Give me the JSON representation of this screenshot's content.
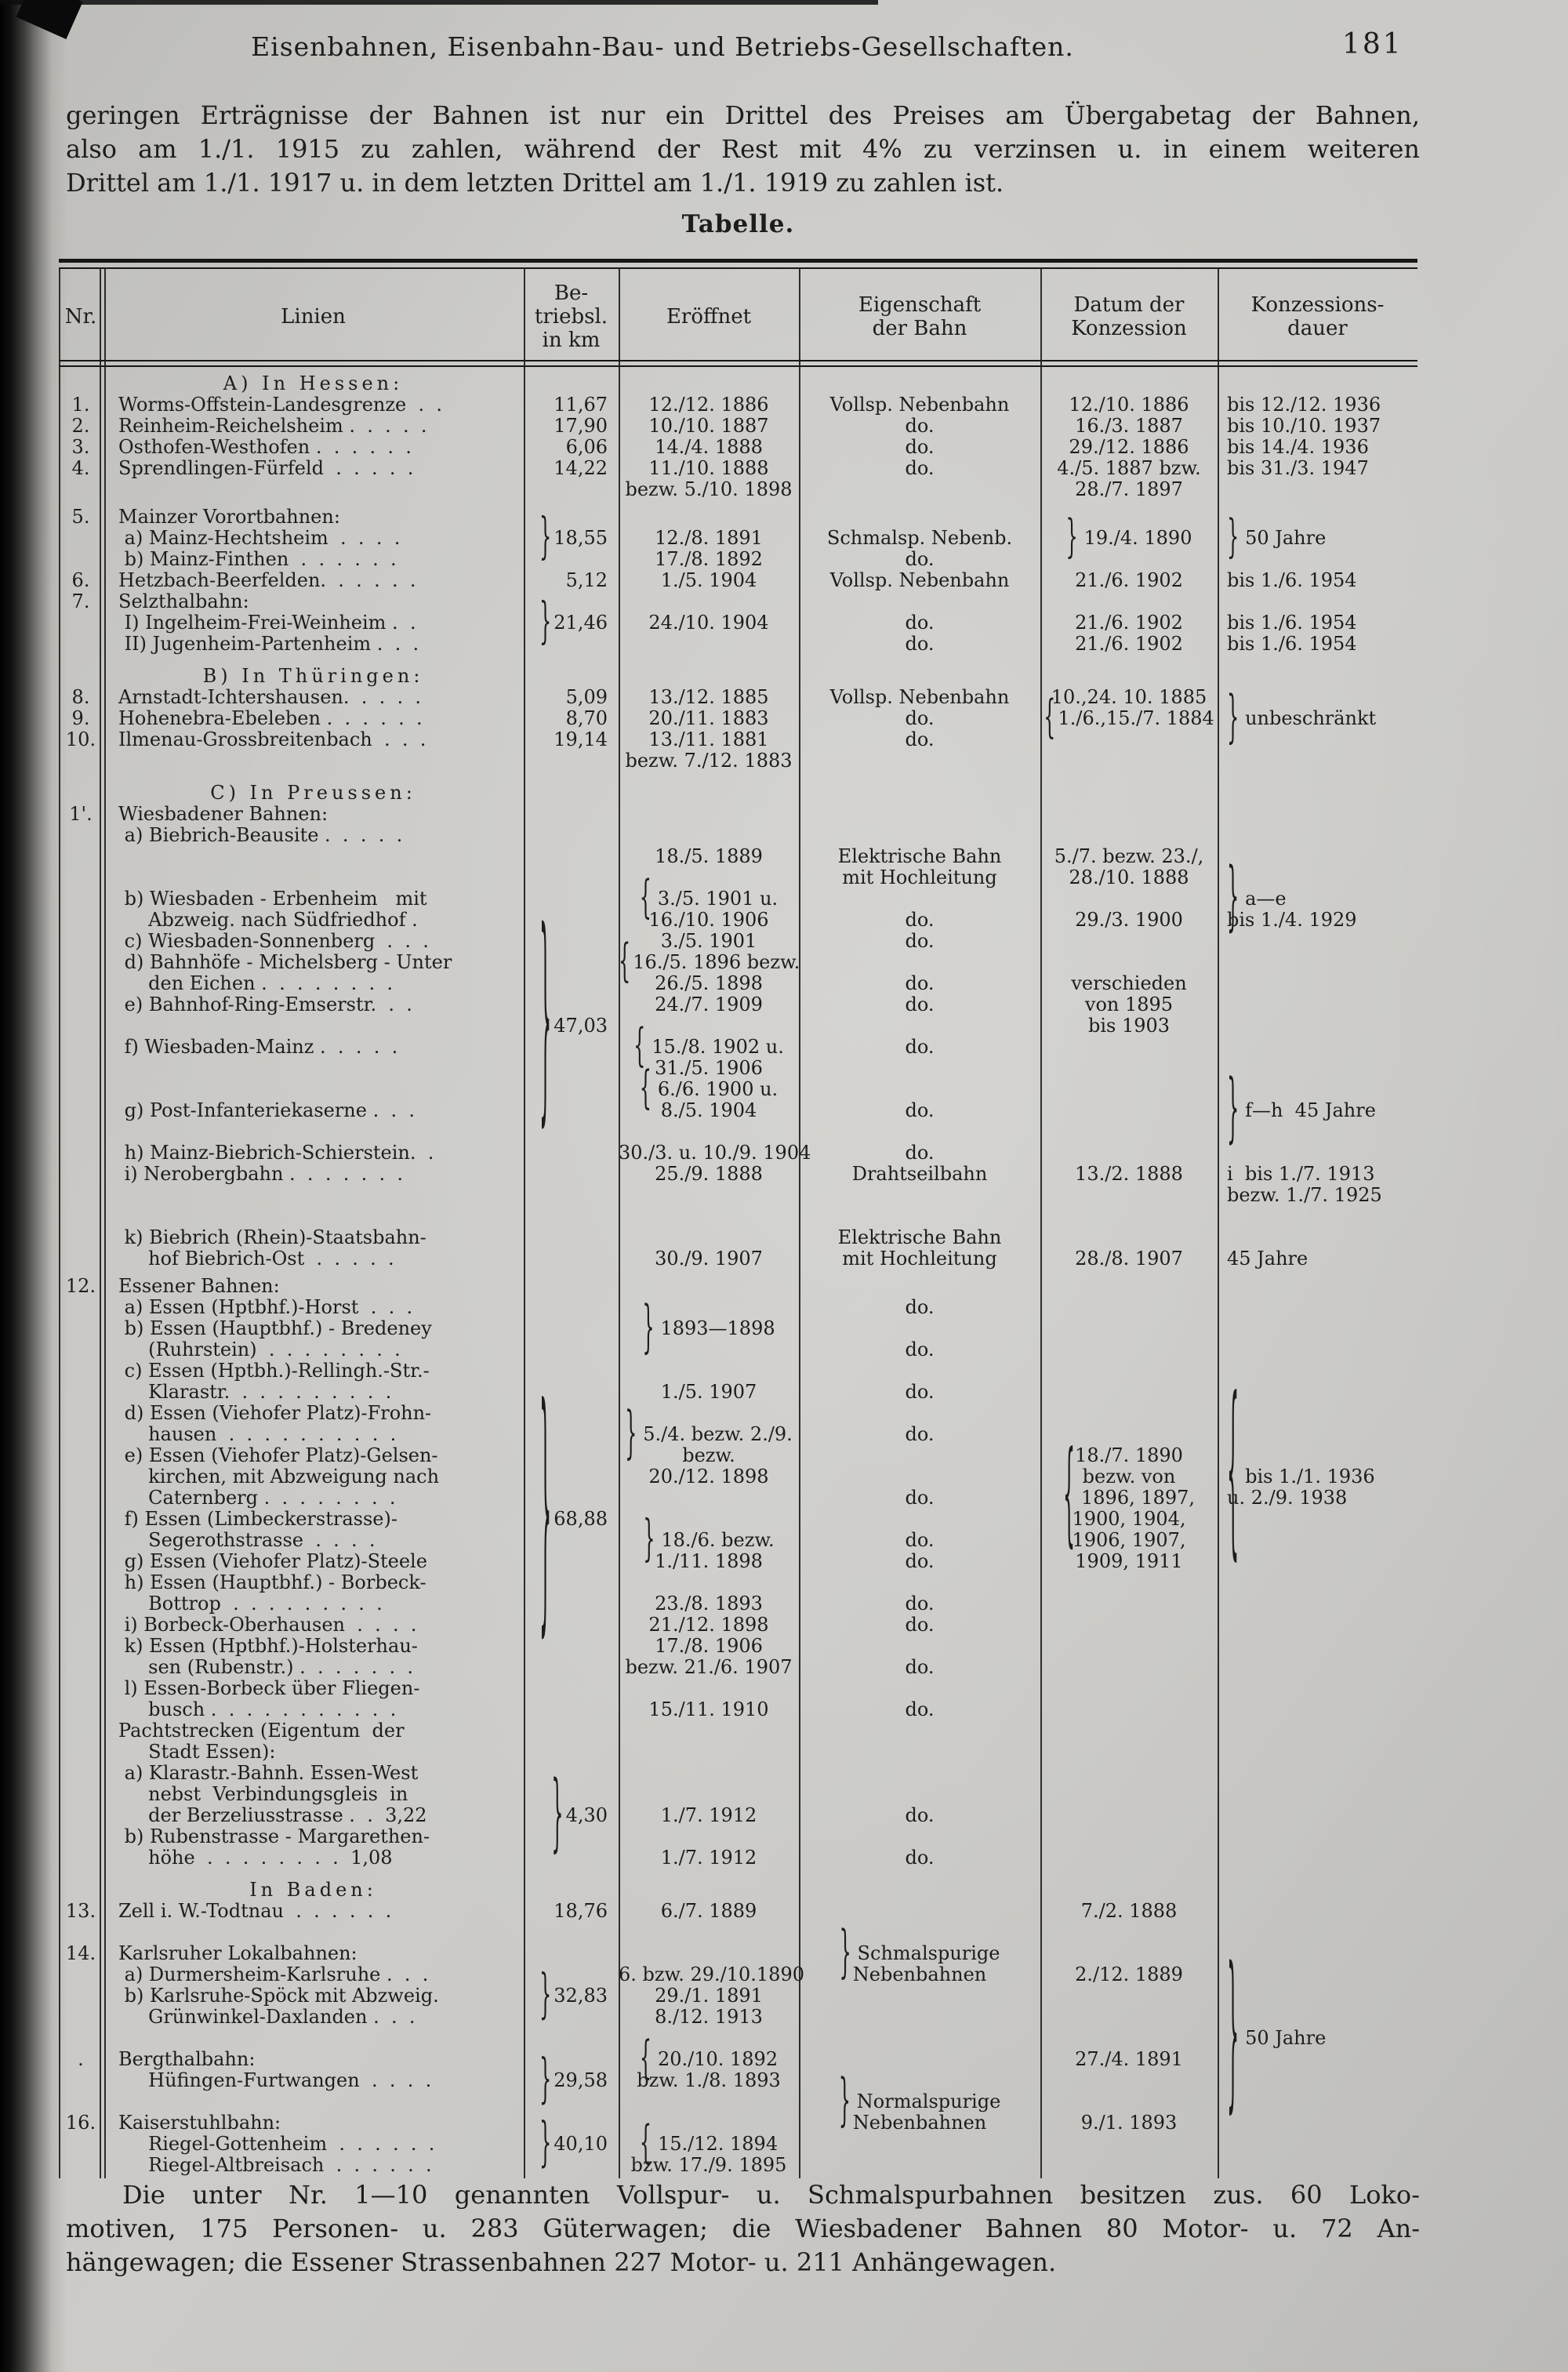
{
  "page_header": {
    "title": "Eisenbahnen, Eisenbahn-Bau- und Betriebs-Gesellschaften.",
    "page_number": "181"
  },
  "intro": {
    "lines": [
      "geringen Erträgnisse der Bahnen ist nur ein Drittel des Preises am Übergabetag der Bahnen,",
      "also am 1./1. 1915 zu zahlen, während der Rest mit 4% zu verzinsen u. in einem weiteren",
      "Drittel am 1./1. 1917 u. in dem letzten Drittel am 1./1. 1919 zu zahlen ist."
    ]
  },
  "table": {
    "caption": "Tabelle.",
    "header": {
      "nr": "Nr.",
      "linien": "Linien",
      "km": "Be-\ntriebsl.\nin km",
      "eroeffnet": "Eröffnet",
      "eigenschaft": "Eigenschaft\nder Bahn",
      "datum": "Datum der\nKonzession",
      "dauer": "Konzessions-\ndauer"
    },
    "rows": [
      {
        "t": "sec",
        "text": "A) In Hessen:"
      },
      {
        "t": "row",
        "nr": [
          "1."
        ],
        "li": [
          "Worms-Offstein-Landesgrenze  .  ."
        ],
        "km": [
          "11,67"
        ],
        "er": [
          "12./12. 1886"
        ],
        "ei": [
          "Vollsp. Nebenbahn"
        ],
        "da": [
          "12./10. 1886"
        ],
        "du": [
          "bis 12./12. 1936"
        ]
      },
      {
        "t": "row",
        "nr": [
          "2."
        ],
        "li": [
          "Reinheim-Reichelsheim .  .  .  .  ."
        ],
        "km": [
          "17,90"
        ],
        "er": [
          "10./10. 1887"
        ],
        "ei": [
          "do."
        ],
        "da": [
          "16./3. 1887"
        ],
        "du": [
          "bis 10./10. 1937"
        ]
      },
      {
        "t": "row",
        "nr": [
          "3."
        ],
        "li": [
          "Osthofen-Westhofen .  .  .  .  .  ."
        ],
        "km": [
          "6,06"
        ],
        "er": [
          "14./4. 1888"
        ],
        "ei": [
          "do."
        ],
        "da": [
          "29./12. 1886"
        ],
        "du": [
          "bis 14./4. 1936"
        ]
      },
      {
        "t": "row",
        "nr": [
          "4."
        ],
        "li": [
          "Sprendlingen-Fürfeld  .  .  .  .  ."
        ],
        "km": [
          "14,22"
        ],
        "er": [
          "11./10. 1888",
          "bezw. 5./10. 1898"
        ],
        "ei": [
          "do."
        ],
        "da": [
          "4./5. 1887 bzw.",
          "28./7. 1897"
        ],
        "du": [
          "bis 31./3. 1947"
        ]
      },
      {
        "t": "gap",
        "h": 8
      },
      {
        "t": "row",
        "nr": [
          "5."
        ],
        "li": [
          "Mainzer Vorortbahnen:",
          " a) Mainz-Hechtsheim  .  .  .  .",
          " b) Mainz-Finthen  .  .  .  .  .  ."
        ],
        "km": [
          "",
          {
            "t": "}18,55",
            "br": 2.6
          }
        ],
        "er": [
          "",
          "12./8. 1891",
          "17./8. 1892"
        ],
        "ei": [
          "",
          "Schmalsp. Nebenb.",
          "do."
        ],
        "da": [
          "",
          {
            "t": "} 19./4. 1890",
            "br": 2.4
          }
        ],
        "du": [
          "",
          {
            "t": "} 50 Jahre",
            "br": 2.4
          }
        ]
      },
      {
        "t": "row",
        "nr": [
          "6."
        ],
        "li": [
          "Hetzbach-Beerfelden.  .  .  .  .  ."
        ],
        "km": [
          "5,12"
        ],
        "er": [
          "1./5. 1904"
        ],
        "ei": [
          "Vollsp. Nebenbahn"
        ],
        "da": [
          "21./6. 1902"
        ],
        "du": [
          "bis 1./6. 1954"
        ]
      },
      {
        "t": "row",
        "nr": [
          "7."
        ],
        "li": [
          "Selzthalbahn:",
          " I) Ingelheim-Frei-Weinheim .  .",
          " II) Jugenheim-Partenheim .  .  ."
        ],
        "km": [
          "",
          {
            "t": "}21,46",
            "br": 2.6
          }
        ],
        "er": [
          "",
          "24./10. 1904"
        ],
        "ei": [
          "",
          "do.",
          "do."
        ],
        "da": [
          "",
          "21./6. 1902",
          "21./6. 1902"
        ],
        "du": [
          "",
          "bis 1./6. 1954",
          "bis 1./6. 1954"
        ]
      },
      {
        "t": "gap",
        "h": 14
      },
      {
        "t": "sec",
        "text": "B) In Thüringen:"
      },
      {
        "t": "row",
        "nr": [
          "8.",
          "9.",
          "10."
        ],
        "li": [
          "Arnstadt-Ichtershausen.  .  .  .  .",
          "Hohenebra-Ebeleben .  .  .  .  .  .",
          "Ilmenau-Grossbreitenbach  .  .  ."
        ],
        "km": [
          "5,09",
          "8,70",
          "19,14"
        ],
        "er": [
          "13./12. 1885",
          "20./11. 1883",
          "13./11. 1881",
          "bezw. 7./12. 1883"
        ],
        "ei": [
          "Vollsp. Nebenbahn",
          "do.",
          "do."
        ],
        "da": [
          "10.,24. 10. 1885",
          {
            "t": "{1./6.,15./7. 1884",
            "br": 2.4
          }
        ],
        "du": [
          "",
          {
            "t": "} unbeschränkt",
            "br": 3
          }
        ]
      },
      {
        "t": "gap",
        "h": 14
      },
      {
        "t": "sec",
        "text": "C) In Preussen:"
      },
      {
        "t": "row",
        "nr": [
          "1'."
        ],
        "li": [
          "Wiesbadener Bahnen:",
          " a) Biebrich-Beausite .  .  .  .  .",
          "",
          "",
          " b) Wiesbaden - Erbenheim   mit",
          "     Abzweig. nach Südfriedhof .",
          " c) Wiesbaden-Sonnenberg  .  .  .",
          " d) Bahnhöfe - Michelsberg - Unter",
          "     den Eichen .  .  .  .  .  .  .  .",
          " e) Bahnhof-Ring-Emserstr.  .  .",
          "",
          " f) Wiesbaden-Mainz .  .  .  .  .",
          "",
          "",
          " g) Post-Infanteriekaserne .  .  .",
          "",
          " h) Mainz-Biebrich-Schierstein.  .",
          " i) Nerobergbahn .  .  .  .  .  .  .",
          "",
          "",
          " k) Biebrich (Rhein)-Staatsbahn-",
          "     hof Biebrich-Ost  .  .  .  .  ."
        ],
        "km": [
          "",
          "",
          "",
          "",
          "",
          "",
          "",
          "",
          "",
          "",
          {
            "t": "}47,03",
            "br": 12
          }
        ],
        "er": [
          "",
          "",
          "18./5. 1889",
          "",
          {
            "t": "{ 3./5. 1901 u.",
            "br": 2.4
          },
          "16./10. 1906",
          "3./5. 1901",
          {
            "t": "{16./5. 1896 bezw.",
            "br": 2.4
          },
          "26./5. 1898",
          "24./7. 1909",
          "",
          {
            "t": "{ 15./8. 1902 u.",
            "br": 2.4
          },
          "31./5. 1906",
          {
            "t": "{ 6./6. 1900 u.",
            "br": 2.4
          },
          "8./5. 1904",
          "",
          "30./3. u. 10./9. 1904",
          "25./9. 1888",
          "",
          "",
          "",
          "30./9. 1907"
        ],
        "ei": [
          "",
          "",
          "Elektrische Bahn",
          "mit Hochleitung",
          "",
          "do.",
          "do.",
          "",
          "do.",
          "do.",
          "",
          "do.",
          "",
          "",
          "do.",
          "",
          "do.",
          "Drahtseilbahn",
          "",
          "",
          "Elektrische Bahn",
          "mit Hochleitung"
        ],
        "da": [
          "",
          "",
          "5./7. bezw. 23./,",
          "28./10. 1888",
          "",
          "29./3. 1900",
          "",
          "",
          "verschieden",
          "von 1895",
          "bis 1903",
          "",
          "",
          "",
          "",
          "",
          "",
          "13./2. 1888",
          "",
          "",
          "",
          "28./8. 1907"
        ],
        "du": [
          "",
          "",
          "",
          "",
          {
            "t": "} a—e",
            "br": 4
          },
          "bis 1./4. 1929",
          "",
          "",
          "",
          "",
          "",
          "",
          "",
          "",
          {
            "t": "} f—h  45 Jahre",
            "br": 4
          },
          "",
          "",
          "i  bis 1./7. 1913",
          "bezw. 1./7. 1925",
          "",
          "",
          "45 Jahre"
        ]
      },
      {
        "t": "gap",
        "h": 8
      },
      {
        "t": "row",
        "nr": [
          "12."
        ],
        "li": [
          "Essener Bahnen:",
          " a) Essen (Hptbhf.)-Horst  .  .  .",
          " b) Essen (Hauptbhf.) - Bredeney",
          "     (Ruhrstein)  .  .  .  .  .  .  .  .",
          " c) Essen (Hptbh.)-Rellingh.-Str.-",
          "     Klarastr.  .  .  .  .  .  .  .  .  .",
          " d) Essen (Viehofer Platz)-Frohn-",
          "     hausen  .  .  .  .  .  .  .  .  .  .",
          " e) Essen (Viehofer Platz)-Gelsen-",
          "     kirchen, mit Abzweigung nach",
          "     Caternberg .  .  .  .  .  .  .  .",
          " f) Essen (Limbeckerstrasse)-",
          "     Segerothstrasse  .  .  .  .",
          " g) Essen (Viehofer Platz)-Steele",
          " h) Essen (Hauptbhf.) - Borbeck-",
          "     Bottrop  .  .  .  .  .  .  .  .  .",
          " i) Borbeck-Oberhausen  .  .  .  .",
          " k) Essen (Hptbhf.)-Holsterhau-",
          "     sen (Rubenstr.) .  .  .  .  .  .  .",
          " l) Essen-Borbeck über Fliegen-",
          "     busch .  .  .  .  .  .  .  .  .  .  .",
          "Pachtstrecken (Eigentum  der",
          "     Stadt Essen):",
          " a) Klarastr.-Bahnh. Essen-West",
          "     nebst  Verbindungsgleis  in",
          "     der Berzeliusstrasse .  .  3,22",
          " b) Rubenstrasse - Margarethen-",
          "     höhe  .  .  .  .  .  .  .  .  1,08"
        ],
        "km": [
          "",
          "",
          "",
          "",
          "",
          "",
          "",
          "",
          "",
          "",
          "",
          {
            "t": "}68,88",
            "br": 14
          },
          "",
          "",
          "",
          "",
          "",
          "",
          "",
          "",
          "",
          "",
          "",
          "",
          "",
          {
            "t": "}4,30",
            "br": 4.5
          }
        ],
        "er": [
          "",
          "",
          {
            "t": "} 1893—1898",
            "br": 3
          },
          "",
          "",
          "1./5. 1907",
          "",
          {
            "t": "} 5./4. bezw. 2./9.",
            "br": 3
          },
          "bezw.",
          "20./12. 1898",
          "",
          "",
          {
            "t": "} 18./6. bezw.",
            "br": 2.6
          },
          "1./11. 1898",
          "",
          "23./8. 1893",
          "21./12. 1898",
          "17./8. 1906",
          "bezw. 21./6. 1907",
          "",
          "15./11. 1910",
          "",
          "",
          "",
          "",
          "1./7. 1912",
          "",
          "1./7. 1912"
        ],
        "ei": [
          "",
          "do.",
          "",
          "do.",
          "",
          "do.",
          "",
          "do.",
          "",
          "",
          "do.",
          "",
          "do.",
          "do.",
          "",
          "do.",
          "do.",
          "",
          "do.",
          "",
          "do.",
          "",
          "",
          "",
          "",
          "do.",
          "",
          "do."
        ],
        "da": [
          "",
          "",
          "",
          "",
          "",
          "",
          "",
          "",
          "18./7. 1890",
          "bezw. von",
          {
            "t": "{ 1896, 1897,",
            "br": 6
          },
          "1900, 1904,",
          "1906, 1907,",
          "1909, 1911"
        ],
        "du": [
          "",
          "",
          "",
          "",
          "",
          "",
          "",
          "",
          "",
          {
            "t": "{ bis 1./1. 1936",
            "br": 10
          },
          "u. 2./9. 1938"
        ]
      },
      {
        "t": "gap",
        "h": 14
      },
      {
        "t": "sec",
        "text": "In Baden:"
      },
      {
        "t": "row",
        "nr": [
          "13.",
          "",
          "14.",
          "",
          "",
          "",
          "",
          ".",
          "",
          "",
          "16."
        ],
        "li": [
          "Zell i. W.-Todtnau  .  .  .  .  .  .",
          "",
          "Karlsruher Lokalbahnen:",
          " a) Durmersheim-Karlsruhe .  .  .",
          " b) Karlsruhe-Spöck mit Abzweig.",
          "     Grünwinkel-Daxlanden .  .  .",
          "",
          "Bergthalbahn:",
          "     Hüfingen-Furtwangen  .  .  .  .",
          "",
          "Kaiserstuhlbahn:",
          "     Riegel-Gottenheim  .  .  .  .  .  .",
          "     Riegel-Altbreisach  .  .  .  .  .  ."
        ],
        "km": [
          "18,76",
          "",
          "",
          "",
          {
            "t": "}32,83",
            "br": 2.8
          },
          "",
          "",
          "",
          {
            "t": "}29,58",
            "br": 2.8
          },
          "",
          "",
          {
            "t": "}40,10",
            "br": 2.8
          }
        ],
        "er": [
          "6./7. 1889",
          "",
          "",
          "6. bzw. 29./10.1890",
          "29./1. 1891",
          "8./12. 1913",
          "",
          {
            "t": "{ 20./10. 1892",
            "br": 2.4
          },
          "bzw. 1./8. 1893",
          "",
          "",
          {
            "t": "{ 15./12. 1894",
            "br": 2.4
          },
          "bzw. 17./9. 1895"
        ],
        "ei": [
          "",
          "",
          {
            "t": "} Schmalspurige",
            "br": 3
          },
          "Nebenbahnen",
          "",
          "",
          "",
          "",
          "",
          {
            "t": "} Normalspurige",
            "br": 3
          },
          "Nebenbahnen"
        ],
        "da": [
          "7./2. 1888",
          "",
          "",
          "2./12. 1889",
          "",
          "",
          "",
          "27./4. 1891",
          "",
          "",
          "9./1. 1893"
        ],
        "du": [
          "",
          "",
          "",
          "",
          "",
          "",
          {
            "t": "} 50 Jahre",
            "br": 9
          }
        ]
      }
    ]
  },
  "footer": {
    "lines": [
      "Die unter Nr. 1—10 genannten Vollspur- u. Schmalspurbahnen besitzen zus. 60 Loko-",
      "motiven, 175 Personen- u. 283 Güterwagen; die Wiesbadener Bahnen 80 Motor- u. 72 An-",
      "hängewagen; die Essener Strassenbahnen 227 Motor- u. 211 Anhängewagen."
    ]
  }
}
